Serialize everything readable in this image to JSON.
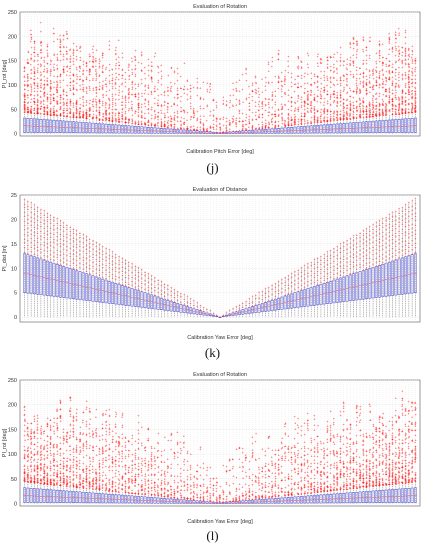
{
  "chart_data": [
    {
      "type": "boxplot",
      "title": "Evaluation of Rotation",
      "xlabel": "Calibration Pitch Error [deg]",
      "ylabel": "PI_rot [deg]",
      "ylim": [
        -5,
        250
      ],
      "yticks": [
        0,
        50,
        100,
        150,
        200,
        250
      ],
      "grid": true,
      "box_color": "#3a3ad6",
      "outlier_color": "#ff1a1a",
      "n_groups": 121,
      "box_quartiles_at_extremes": [
        0,
        30
      ],
      "outlier_range": [
        0,
        245
      ],
      "sub_label": "(j)"
    },
    {
      "type": "boxplot",
      "title": "Evaluation of Distance",
      "xlabel": "Calibration Yaw Error [deg]",
      "ylabel": "PI_dist [m]",
      "ylim": [
        -1,
        25
      ],
      "yticks": [
        0,
        5,
        10,
        15,
        20,
        25
      ],
      "grid": true,
      "box_color": "#3a3ad6",
      "outlier_color": "#ff1a1a",
      "n_groups": 121,
      "box_quartiles_at_extremes": [
        5,
        13
      ],
      "outlier_range": [
        0,
        24
      ],
      "sub_label": "(k)"
    },
    {
      "type": "boxplot",
      "title": "Evaluation of Rotation",
      "xlabel": "Calibration Yaw Error [deg]",
      "ylabel": "PI_rot [deg]",
      "ylim": [
        -5,
        250
      ],
      "yticks": [
        0,
        50,
        100,
        150,
        200,
        250
      ],
      "grid": true,
      "box_color": "#3a3ad6",
      "outlier_color": "#ff1a1a",
      "n_groups": 121,
      "box_quartiles_at_extremes": [
        0,
        30
      ],
      "outlier_range": [
        0,
        245
      ],
      "sub_label": "(l)"
    }
  ]
}
